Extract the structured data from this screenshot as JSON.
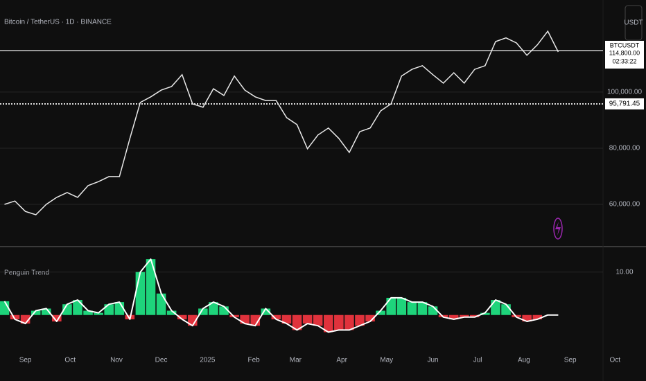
{
  "chart_data": [
    {
      "type": "line",
      "title": "Bitcoin / TetherUS · 1D · BINANCE",
      "currency": "USDT",
      "symbol_label": "BTCUSDT",
      "countdown": "02:33:22",
      "color": "#e8e8e8",
      "x": [
        -14,
        -7,
        0,
        7,
        14,
        21,
        28,
        35,
        42,
        49,
        56,
        63,
        70,
        77,
        84,
        91,
        98,
        105,
        112,
        119,
        126,
        133,
        140,
        147,
        154,
        161,
        168,
        175,
        182,
        189,
        196,
        203,
        210,
        217,
        224,
        231,
        238,
        245,
        252,
        259,
        266,
        273,
        280,
        287,
        294,
        301,
        308,
        315,
        322,
        329,
        336,
        343,
        350,
        357
      ],
      "values": [
        60000,
        61200,
        57500,
        56300,
        60000,
        62500,
        64200,
        62500,
        66700,
        68100,
        69900,
        69900,
        83500,
        96300,
        98300,
        100700,
        102000,
        106200,
        95800,
        94600,
        101200,
        98800,
        105700,
        100700,
        98300,
        97000,
        97000,
        90900,
        88400,
        79800,
        84700,
        87200,
        83500,
        78500,
        85900,
        87200,
        93300,
        95800,
        105700,
        108100,
        109400,
        106200,
        103200,
        106900,
        103200,
        108100,
        109400,
        118000,
        119300,
        117500,
        113100,
        116800,
        121700,
        114300
      ],
      "xlim": [
        -17,
        387
      ],
      "ylim": [
        45200,
        132800
      ],
      "yticks": [
        {
          "value": 60000,
          "label": "60,000.00"
        },
        {
          "value": 80000,
          "label": "80,000.00"
        },
        {
          "value": 100000,
          "label": "100,000.00"
        }
      ],
      "hlines": [
        {
          "value": 95791.45,
          "label": "95,791.45"
        }
      ],
      "last_price": {
        "value": 114800,
        "label": "114,800.00"
      },
      "grid": true
    },
    {
      "type": "bar",
      "title": "Penguin Trend",
      "positive_color": "#1ed47b",
      "negative_color": "#e0323c",
      "line_color": "#ffffff",
      "x": [
        -14,
        -7,
        0,
        7,
        14,
        21,
        28,
        35,
        42,
        49,
        56,
        63,
        70,
        77,
        84,
        91,
        98,
        105,
        112,
        119,
        126,
        133,
        140,
        147,
        154,
        161,
        168,
        175,
        182,
        189,
        196,
        203,
        210,
        217,
        224,
        231,
        238,
        245,
        252,
        259,
        266,
        273,
        280,
        287,
        294,
        301,
        308,
        315,
        322,
        329,
        336,
        343,
        350,
        357
      ],
      "values": [
        3.2,
        -1,
        -2,
        1,
        1.5,
        -1.5,
        2.5,
        3.5,
        1,
        0.5,
        2.5,
        3,
        -1,
        10,
        13,
        5,
        1,
        -1,
        -2.5,
        1.5,
        3,
        2,
        -0.5,
        -2,
        -2.5,
        1.5,
        -1,
        -2,
        -3.5,
        -2,
        -2.5,
        -4,
        -3.5,
        -3.5,
        -2.5,
        -1.5,
        1,
        4,
        4,
        3,
        3,
        2,
        -0.5,
        -1,
        -0.5,
        -0.5,
        0.5,
        3.5,
        2.5,
        -0.5,
        -1.5,
        -1,
        0,
        0
      ],
      "xlim": [
        -17,
        387
      ],
      "ylim": [
        -7.3,
        15.6
      ],
      "yticks": [
        {
          "value": 10,
          "label": "10.00"
        }
      ],
      "xticks": [
        {
          "value": 0,
          "label": "Sep"
        },
        {
          "value": 30,
          "label": "Oct"
        },
        {
          "value": 61,
          "label": "Nov"
        },
        {
          "value": 91,
          "label": "Dec"
        },
        {
          "value": 122,
          "label": "2025"
        },
        {
          "value": 153,
          "label": "Feb"
        },
        {
          "value": 181,
          "label": "Mar"
        },
        {
          "value": 212,
          "label": "Apr"
        },
        {
          "value": 242,
          "label": "May"
        },
        {
          "value": 273,
          "label": "Jun"
        },
        {
          "value": 303,
          "label": "Jul"
        },
        {
          "value": 334,
          "label": "Aug"
        },
        {
          "value": 365,
          "label": "Sep"
        },
        {
          "value": 395,
          "label": "Oct"
        }
      ],
      "grid": true
    }
  ]
}
